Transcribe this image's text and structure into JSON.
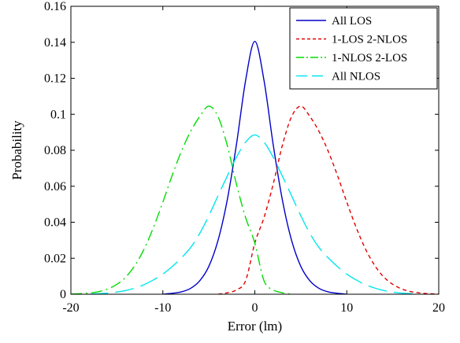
{
  "chart_data": {
    "type": "line",
    "xlabel": "Error (lm)",
    "ylabel": "Probability",
    "xlim": [
      -20,
      20
    ],
    "ylim": [
      0,
      0.16
    ],
    "xticks": [
      -20,
      -10,
      0,
      10,
      20
    ],
    "xtick_labels": [
      "-20",
      "-10",
      "0",
      "10",
      "20"
    ],
    "yticks": [
      0,
      0.02,
      0.04,
      0.06,
      0.08,
      0.1,
      0.12,
      0.14,
      0.16
    ],
    "ytick_labels": [
      "0",
      "0.02",
      "0.04",
      "0.06",
      "0.08",
      "0.1",
      "0.12",
      "0.14",
      "0.16"
    ],
    "grid": false,
    "legend_position": "top-right",
    "series": [
      {
        "name": "All LOS",
        "color": "#0000c8",
        "dash": "solid",
        "x": [
          -10,
          -9,
          -8,
          -7,
          -6,
          -5,
          -4,
          -3,
          -2,
          -1,
          0,
          1,
          2,
          3,
          4,
          5,
          6,
          7,
          8,
          9,
          10
        ],
        "y": [
          0.0,
          0.0005,
          0.0013,
          0.0032,
          0.0074,
          0.0155,
          0.0299,
          0.0523,
          0.0831,
          0.1188,
          0.1405,
          0.1188,
          0.0831,
          0.0523,
          0.0299,
          0.0155,
          0.0074,
          0.0032,
          0.0013,
          0.0005,
          0.0
        ]
      },
      {
        "name": "1-LOS 2-NLOS",
        "color": "#e00000",
        "dash": "dashed",
        "x": [
          -4,
          -3,
          -2,
          -1,
          0,
          1,
          2,
          3,
          4,
          5,
          6,
          7,
          8,
          9,
          10,
          11,
          12,
          13,
          14,
          15,
          16,
          17,
          18,
          19,
          20
        ],
        "y": [
          0.0,
          0.0008,
          0.0024,
          0.0075,
          0.0284,
          0.0426,
          0.0612,
          0.0828,
          0.0987,
          0.1045,
          0.0987,
          0.0903,
          0.0792,
          0.0658,
          0.0512,
          0.0374,
          0.0255,
          0.0163,
          0.0097,
          0.0055,
          0.0029,
          0.0014,
          0.0007,
          0.0003,
          0.0001
        ]
      },
      {
        "name": "1-NLOS 2-LOS",
        "color": "#00dd00",
        "dash": "dashdot",
        "x": [
          -20,
          -19,
          -18,
          -17,
          -16,
          -15,
          -14,
          -13,
          -12,
          -11,
          -10,
          -9,
          -8,
          -7,
          -6,
          -5,
          -4,
          -3,
          -2,
          -1,
          0,
          1,
          2,
          3,
          4
        ],
        "y": [
          0.0001,
          0.0003,
          0.0007,
          0.0014,
          0.0029,
          0.0055,
          0.0097,
          0.0163,
          0.0255,
          0.0374,
          0.0512,
          0.0658,
          0.0792,
          0.0903,
          0.0987,
          0.1045,
          0.0987,
          0.0828,
          0.0612,
          0.0426,
          0.0284,
          0.0075,
          0.0024,
          0.0008,
          0.0
        ]
      },
      {
        "name": "All NLOS",
        "color": "#00e5ee",
        "dash": "longdash",
        "x": [
          -18,
          -17,
          -16,
          -15,
          -14,
          -13,
          -12,
          -11,
          -10,
          -9,
          -8,
          -7,
          -6,
          -5,
          -4,
          -3,
          -2,
          -1,
          0,
          1,
          2,
          3,
          4,
          5,
          6,
          7,
          8,
          9,
          10,
          11,
          12,
          13,
          14,
          15,
          16,
          17,
          18
        ],
        "y": [
          0.0,
          0.0003,
          0.0006,
          0.0012,
          0.0021,
          0.0035,
          0.0054,
          0.008,
          0.0112,
          0.0153,
          0.0201,
          0.0258,
          0.0337,
          0.0436,
          0.0547,
          0.0656,
          0.0761,
          0.0845,
          0.0885,
          0.0845,
          0.0761,
          0.0656,
          0.0547,
          0.0436,
          0.0337,
          0.0258,
          0.0201,
          0.0153,
          0.0112,
          0.008,
          0.0054,
          0.0035,
          0.0021,
          0.0012,
          0.0006,
          0.0003,
          0.0
        ]
      }
    ]
  }
}
